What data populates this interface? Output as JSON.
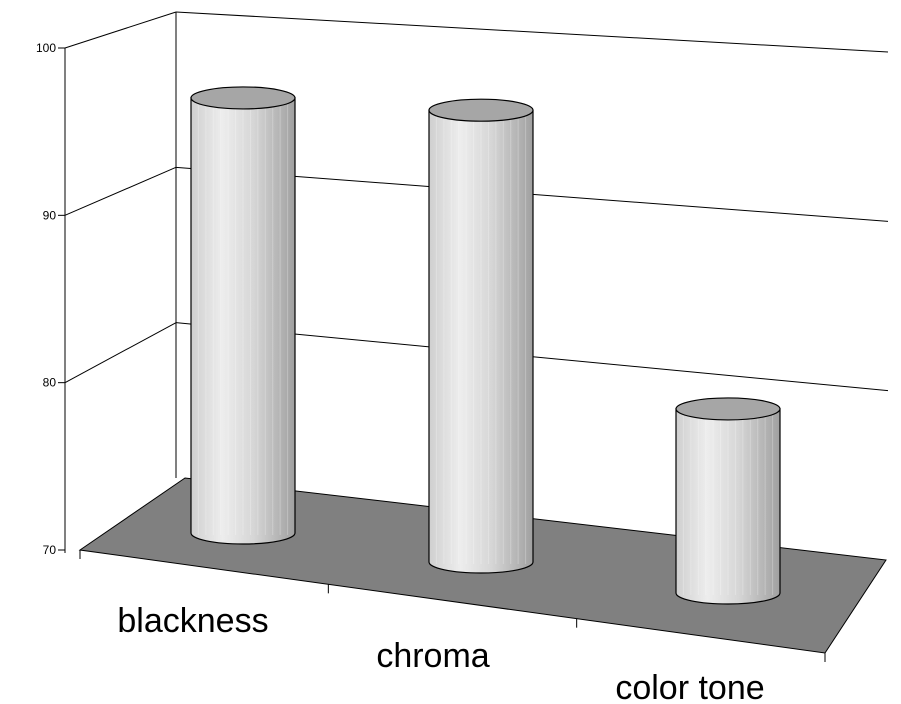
{
  "chart_data": {
    "type": "bar",
    "style": "3d-cylinder",
    "categories": [
      "blackness",
      "chroma",
      "color tone"
    ],
    "values": [
      96,
      97,
      81
    ],
    "ylim": [
      70,
      100
    ],
    "yticks": [
      "70",
      "80",
      "90",
      "100"
    ],
    "grid": true,
    "legend": "none",
    "colors": {
      "floor": "#808080",
      "cylinder_top": "#a6a6a6",
      "cylinder_light": "#ededed",
      "cylinder_dark": "#a0a0a0"
    }
  }
}
